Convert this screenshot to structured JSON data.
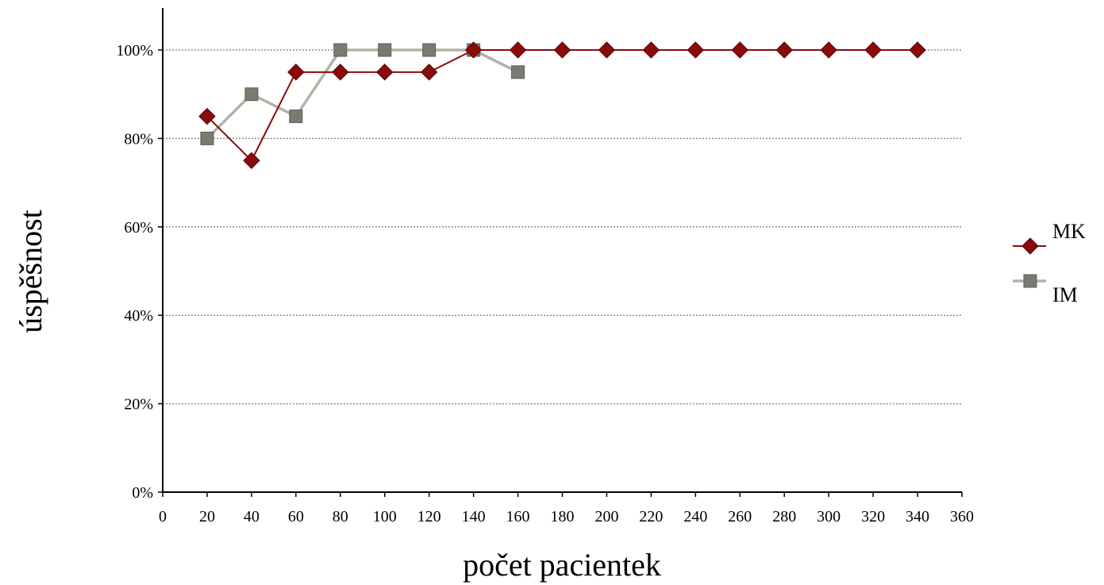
{
  "chart_data": {
    "type": "line",
    "xlabel": "počet pacientek",
    "ylabel": "úspěšnost",
    "xlim": [
      0,
      360
    ],
    "ylim": [
      0,
      100
    ],
    "x_ticks": [
      "0",
      "20",
      "40",
      "60",
      "80",
      "100",
      "120",
      "140",
      "160",
      "180",
      "200",
      "220",
      "240",
      "260",
      "280",
      "300",
      "320",
      "340",
      "360"
    ],
    "y_ticks": [
      "0%",
      "20%",
      "40%",
      "60%",
      "80%",
      "100%"
    ],
    "grid": "horizontal dotted",
    "legend_position": "right",
    "series": [
      {
        "name": "MK",
        "color": "#8b0a0a",
        "marker": "diamond",
        "x": [
          20,
          40,
          60,
          80,
          100,
          120,
          140,
          160,
          180,
          200,
          220,
          240,
          260,
          280,
          300,
          320,
          340
        ],
        "values": [
          85,
          75,
          95,
          95,
          95,
          95,
          100,
          100,
          100,
          100,
          100,
          100,
          100,
          100,
          100,
          100,
          100
        ]
      },
      {
        "name": "IM",
        "color": "#b5b2a5",
        "marker_color": "#7a7a70",
        "marker": "square",
        "x": [
          20,
          40,
          60,
          80,
          100,
          120,
          140,
          160
        ],
        "values": [
          80,
          90,
          85,
          100,
          100,
          100,
          100,
          95
        ]
      }
    ]
  }
}
